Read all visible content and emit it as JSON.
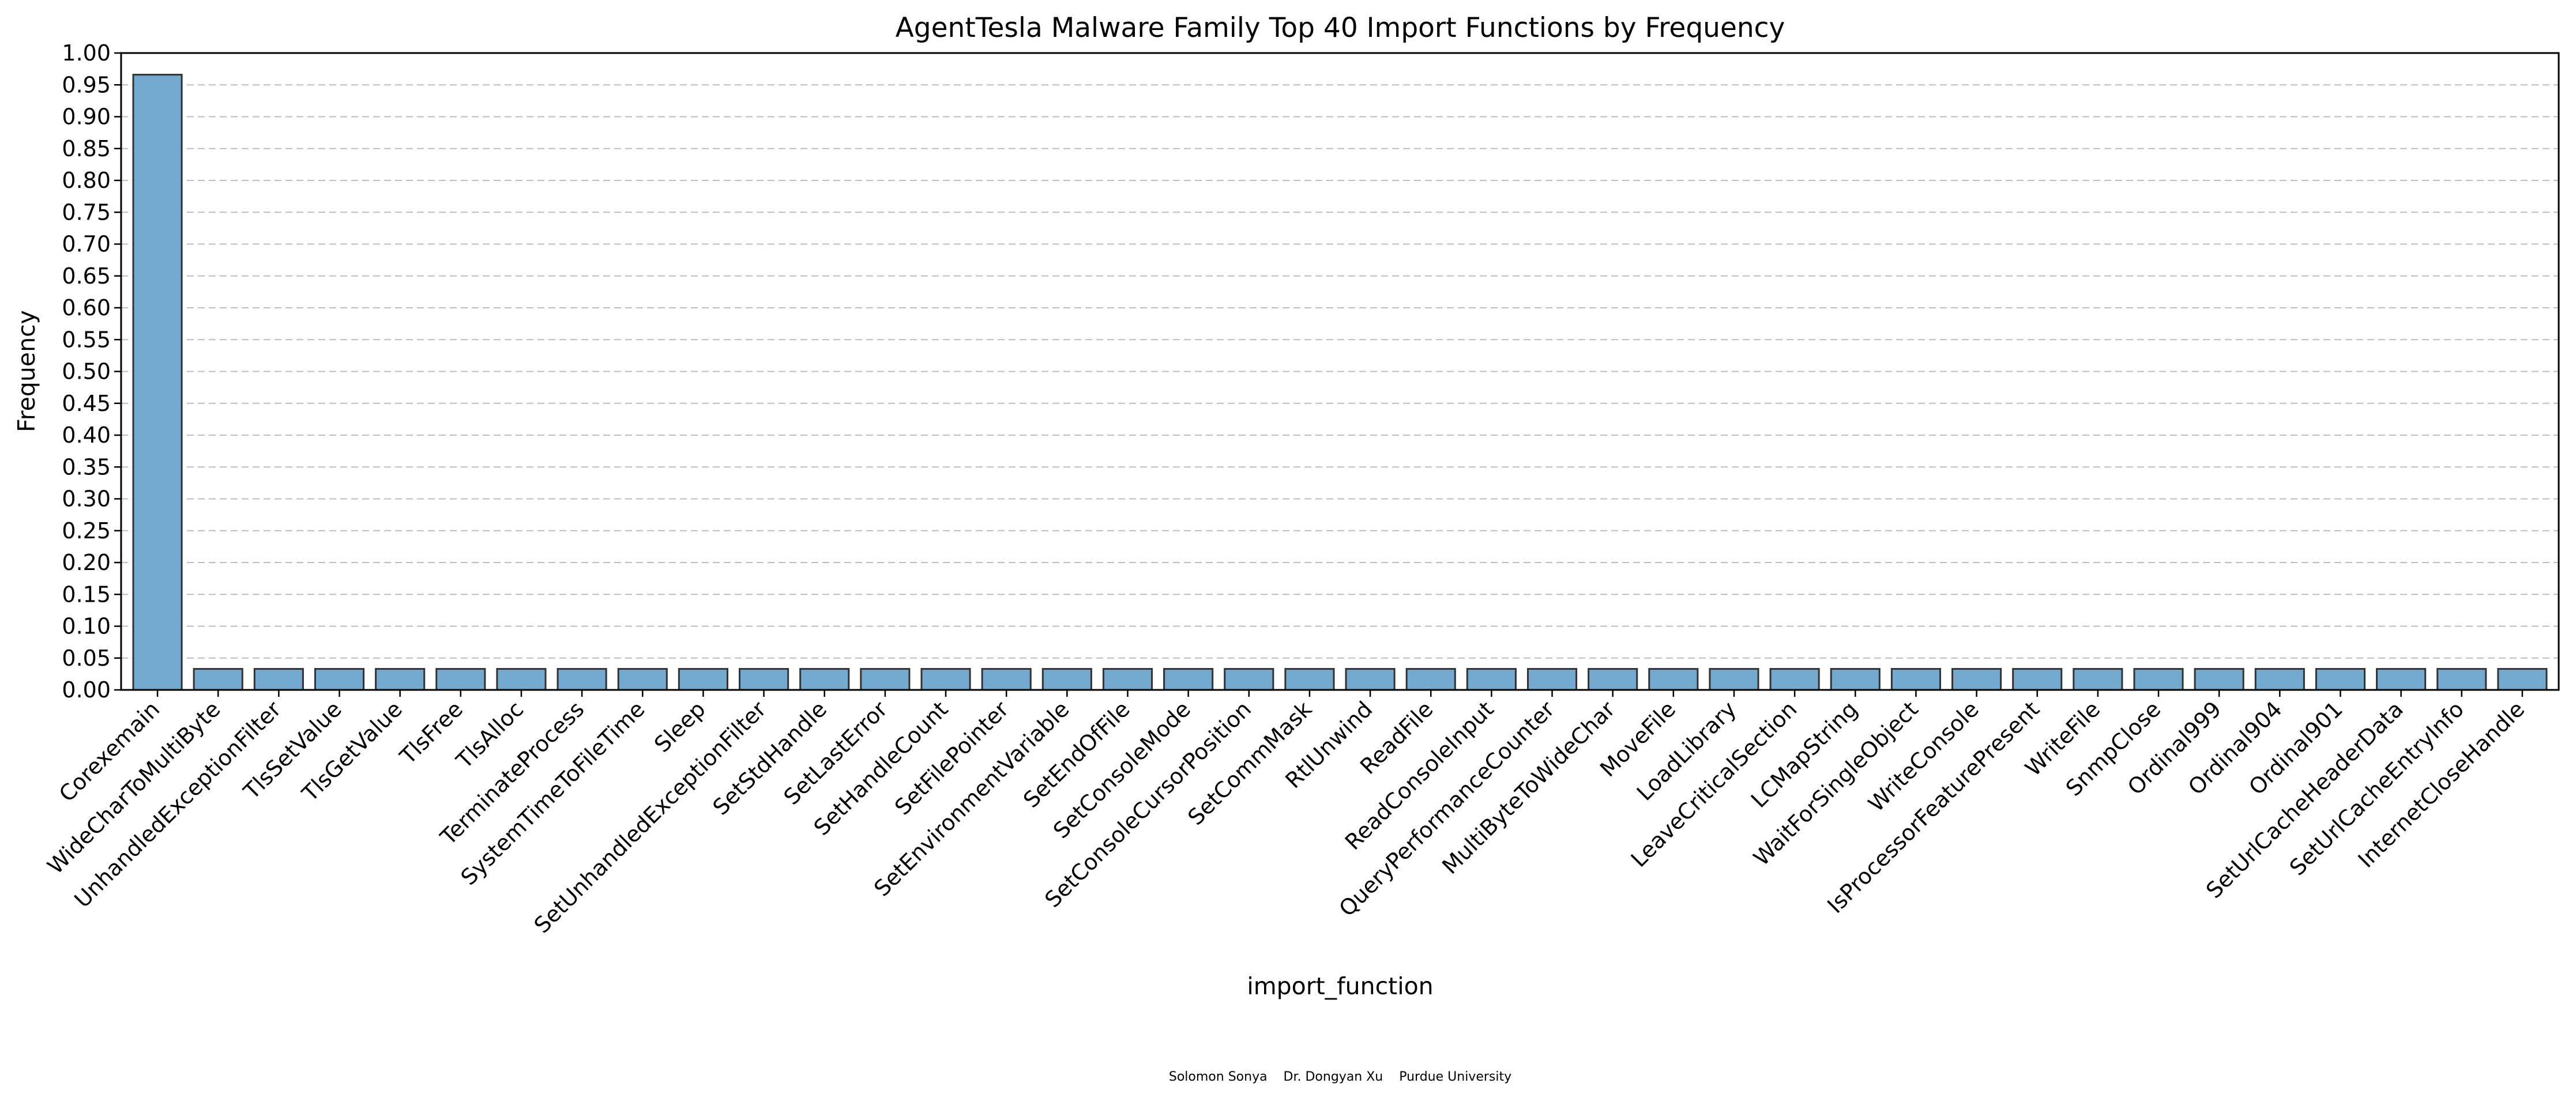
{
  "chart_data": {
    "type": "bar",
    "title": "AgentTesla Malware Family Top 40 Import Functions by Frequency",
    "xlabel": "import_function",
    "ylabel": "Frequency",
    "ylim": [
      0,
      1.0
    ],
    "ytick_step": 0.05,
    "grid": "y-dashed",
    "bar_color": "#74a9cf",
    "bar_edge_color": "#333333",
    "categories": [
      "Corexemain",
      "WideCharToMultiByte",
      "UnhandledExceptionFilter",
      "TlsSetValue",
      "TlsGetValue",
      "TlsFree",
      "TlsAlloc",
      "TerminateProcess",
      "SystemTimeToFileTime",
      "Sleep",
      "SetUnhandledExceptionFilter",
      "SetStdHandle",
      "SetLastError",
      "SetHandleCount",
      "SetFilePointer",
      "SetEnvironmentVariable",
      "SetEndOfFile",
      "SetConsoleMode",
      "SetConsoleCursorPosition",
      "SetCommMask",
      "RtlUnwind",
      "ReadFile",
      "ReadConsoleInput",
      "QueryPerformanceCounter",
      "MultiByteToWideChar",
      "MoveFile",
      "LoadLibrary",
      "LeaveCriticalSection",
      "LCMapString",
      "WaitForSingleObject",
      "WriteConsole",
      "IsProcessorFeaturePresent",
      "WriteFile",
      "SnmpClose",
      "Ordinal999",
      "Ordinal904",
      "Ordinal901",
      "SetUrlCacheHeaderData",
      "SetUrlCacheEntryInfo",
      "InternetCloseHandle"
    ],
    "values": [
      0.966,
      0.033,
      0.033,
      0.033,
      0.033,
      0.033,
      0.033,
      0.033,
      0.033,
      0.033,
      0.033,
      0.033,
      0.033,
      0.033,
      0.033,
      0.033,
      0.033,
      0.033,
      0.033,
      0.033,
      0.033,
      0.033,
      0.033,
      0.033,
      0.033,
      0.033,
      0.033,
      0.033,
      0.033,
      0.033,
      0.033,
      0.033,
      0.033,
      0.033,
      0.033,
      0.033,
      0.033,
      0.033,
      0.033,
      0.033
    ]
  },
  "footer": "Solomon Sonya    Dr. Dongyan Xu    Purdue University"
}
